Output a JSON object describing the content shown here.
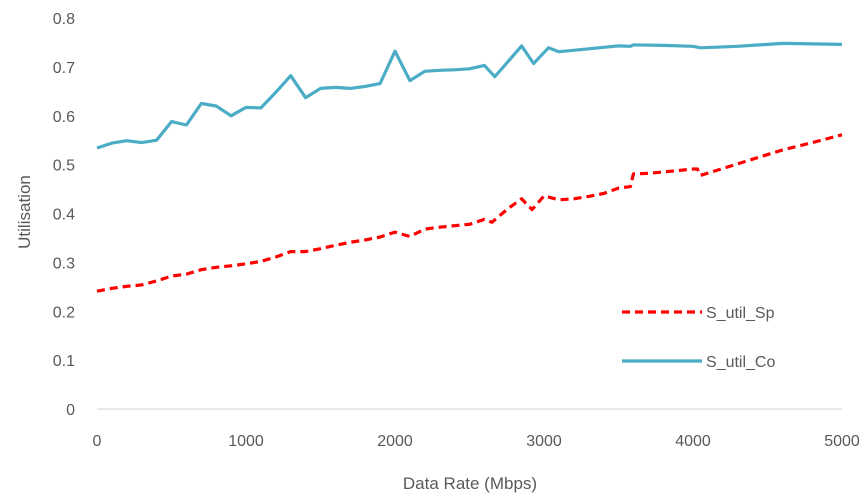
{
  "chart_data": {
    "type": "line",
    "title": "",
    "xlabel": "Data Rate (Mbps)",
    "ylabel": "Utilisation",
    "xlim": [
      0,
      5000
    ],
    "ylim": [
      0,
      0.8
    ],
    "x_ticks": [
      0,
      1000,
      2000,
      3000,
      4000,
      5000
    ],
    "y_ticks": [
      0,
      0.1,
      0.2,
      0.3,
      0.4,
      0.5,
      0.6,
      0.7,
      0.8
    ],
    "x_tick_labels": [
      "0",
      "1000",
      "2000",
      "3000",
      "4000",
      "5000"
    ],
    "y_tick_labels": [
      "0",
      "0.1",
      "0.2",
      "0.3",
      "0.4",
      "0.5",
      "0.6",
      "0.7",
      "0.8"
    ],
    "grid": false,
    "legend_position": "bottom-right",
    "series": [
      {
        "name": "S_util_Sp",
        "color": "#ff0000",
        "style": "dashed",
        "x": [
          0,
          100,
          200,
          300,
          400,
          500,
          600,
          700,
          800,
          900,
          1000,
          1100,
          1200,
          1300,
          1400,
          1500,
          1600,
          1700,
          1800,
          1900,
          2000,
          2100,
          2200,
          2300,
          2400,
          2500,
          2600,
          2650,
          2750,
          2850,
          2920,
          3000,
          3100,
          3200,
          3300,
          3400,
          3500,
          3580,
          3600,
          3700,
          3800,
          3900,
          4000,
          4030,
          4050,
          4200,
          4400,
          4600,
          4800,
          5000
        ],
        "y": [
          0.241,
          0.247,
          0.251,
          0.254,
          0.262,
          0.272,
          0.276,
          0.285,
          0.29,
          0.293,
          0.297,
          0.302,
          0.311,
          0.322,
          0.322,
          0.328,
          0.335,
          0.341,
          0.346,
          0.352,
          0.362,
          0.353,
          0.368,
          0.372,
          0.375,
          0.378,
          0.388,
          0.382,
          0.408,
          0.43,
          0.408,
          0.436,
          0.428,
          0.43,
          0.435,
          0.441,
          0.452,
          0.455,
          0.481,
          0.482,
          0.485,
          0.488,
          0.491,
          0.491,
          0.478,
          0.492,
          0.511,
          0.53,
          0.545,
          0.561
        ]
      },
      {
        "name": "S_util_Co",
        "color": "#4bacc6",
        "style": "solid",
        "x": [
          0,
          100,
          200,
          300,
          400,
          500,
          600,
          700,
          800,
          900,
          1000,
          1100,
          1200,
          1300,
          1400,
          1500,
          1600,
          1700,
          1800,
          1900,
          2000,
          2100,
          2200,
          2300,
          2400,
          2500,
          2600,
          2670,
          2750,
          2850,
          2930,
          3030,
          3100,
          3200,
          3400,
          3500,
          3580,
          3600,
          3800,
          4000,
          4050,
          4300,
          4600,
          4800,
          5000
        ],
        "y": [
          0.534,
          0.544,
          0.549,
          0.545,
          0.55,
          0.588,
          0.581,
          0.625,
          0.62,
          0.6,
          0.617,
          0.616,
          0.648,
          0.682,
          0.637,
          0.656,
          0.658,
          0.656,
          0.66,
          0.666,
          0.732,
          0.672,
          0.691,
          0.693,
          0.694,
          0.696,
          0.703,
          0.68,
          0.708,
          0.743,
          0.707,
          0.739,
          0.731,
          0.734,
          0.74,
          0.743,
          0.742,
          0.745,
          0.744,
          0.742,
          0.739,
          0.742,
          0.748,
          0.747,
          0.746
        ]
      }
    ]
  }
}
